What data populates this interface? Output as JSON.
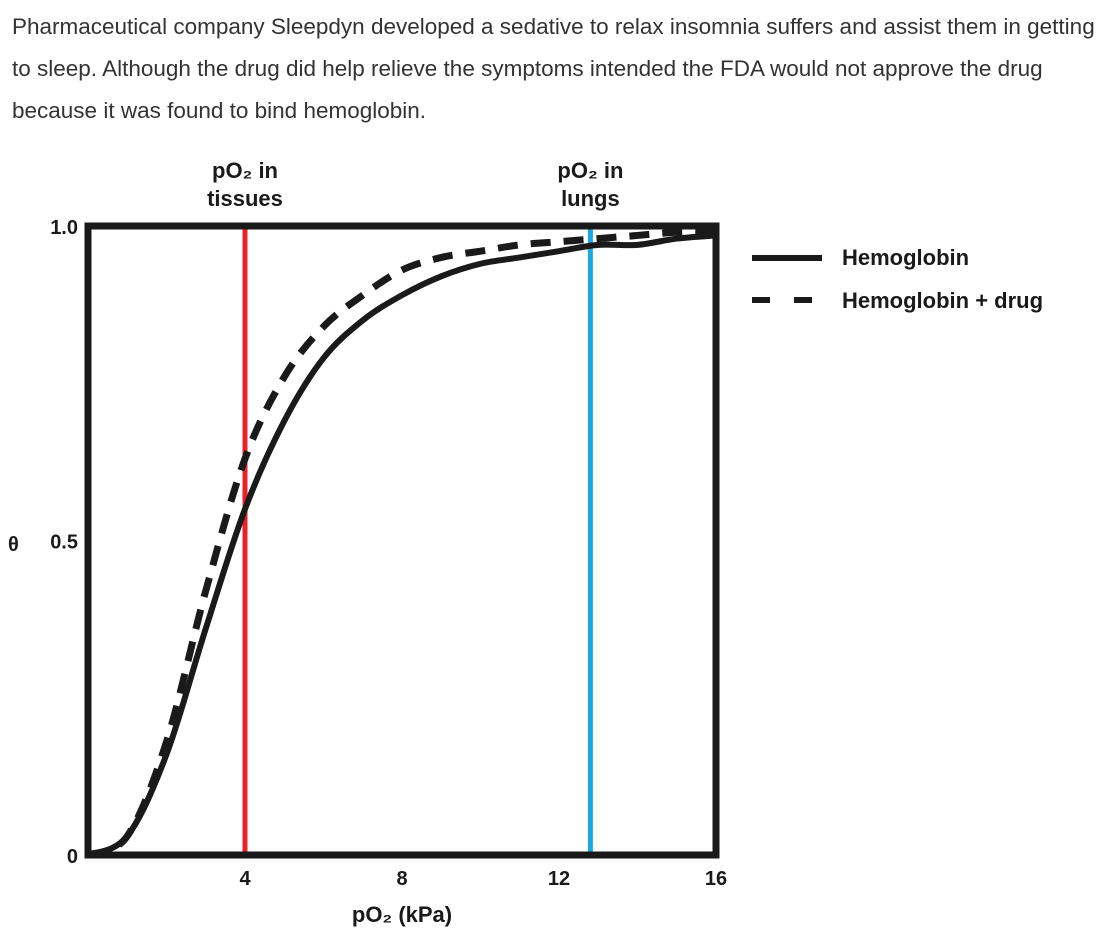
{
  "question": {
    "text": "Pharmaceutical company Sleepdyn developed a sedative to relax insomnia suffers and assist them in getting to sleep. Although the drug did help relieve the symptoms intended the FDA would not approve the drug because it was found to bind hemoglobin."
  },
  "chart_data": {
    "type": "line",
    "title": "",
    "xlabel": "pO₂ (kPa)",
    "ylabel": "θ",
    "xlim": [
      0,
      16
    ],
    "ylim": [
      0,
      1.0
    ],
    "x_ticks": [
      "4",
      "8",
      "12",
      "16"
    ],
    "y_ticks": [
      "0",
      "0.5",
      "1.0"
    ],
    "grid": false,
    "legend_placement": "right",
    "x": [
      0,
      1,
      2,
      3,
      4,
      5,
      6,
      7,
      8,
      9,
      10,
      11,
      12,
      13,
      14,
      15,
      16
    ],
    "series": [
      {
        "name": "Hemoglobin",
        "style": "solid",
        "color": "#1a1a1a",
        "values": [
          0,
          0.03,
          0.16,
          0.36,
          0.55,
          0.69,
          0.79,
          0.85,
          0.89,
          0.92,
          0.94,
          0.95,
          0.96,
          0.97,
          0.97,
          0.98,
          0.985
        ]
      },
      {
        "name": "Hemoglobin + drug",
        "style": "dashed",
        "color": "#1a1a1a",
        "values": [
          0,
          0.03,
          0.18,
          0.42,
          0.63,
          0.76,
          0.84,
          0.89,
          0.93,
          0.95,
          0.96,
          0.97,
          0.975,
          0.98,
          0.985,
          0.99,
          0.99
        ]
      }
    ],
    "annotations": [
      {
        "label_line1": "pO₂ in",
        "label_line2": "tissues",
        "x": 4,
        "color": "#e8202a"
      },
      {
        "label_line1": "pO₂ in",
        "label_line2": "lungs",
        "x": 12.8,
        "color": "#1fa8e0"
      }
    ]
  }
}
